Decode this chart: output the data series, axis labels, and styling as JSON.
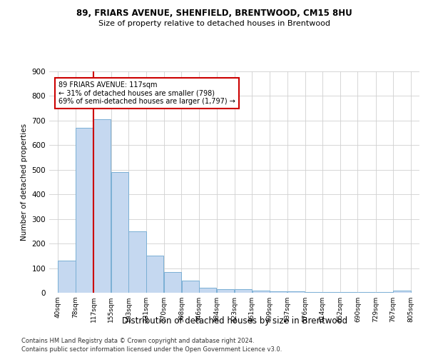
{
  "title1": "89, FRIARS AVENUE, SHENFIELD, BRENTWOOD, CM15 8HU",
  "title2": "Size of property relative to detached houses in Brentwood",
  "xlabel": "Distribution of detached houses by size in Brentwood",
  "ylabel": "Number of detached properties",
  "footnote1": "Contains HM Land Registry data © Crown copyright and database right 2024.",
  "footnote2": "Contains public sector information licensed under the Open Government Licence v3.0.",
  "annotation_line1": "89 FRIARS AVENUE: 117sqm",
  "annotation_line2": "← 31% of detached houses are smaller (798)",
  "annotation_line3": "69% of semi-detached houses are larger (1,797) →",
  "property_size_idx": 2,
  "bins": [
    40,
    78,
    117,
    155,
    193,
    231,
    270,
    308,
    346,
    384,
    423,
    461,
    499,
    537,
    576,
    614,
    652,
    690,
    729,
    767,
    805
  ],
  "values": [
    130,
    670,
    705,
    490,
    250,
    150,
    85,
    50,
    20,
    15,
    15,
    10,
    7,
    5,
    4,
    3,
    2,
    2,
    2,
    10
  ],
  "bar_color": "#c5d8f0",
  "bar_edge_color": "#7aafd4",
  "red_line_color": "#cc0000",
  "annotation_box_color": "#cc0000",
  "grid_color": "#d0d0d0",
  "bg_color": "#ffffff",
  "ylim": [
    0,
    900
  ],
  "yticks": [
    0,
    100,
    200,
    300,
    400,
    500,
    600,
    700,
    800,
    900
  ],
  "title1_fontsize": 8.5,
  "title2_fontsize": 8.0,
  "xlabel_fontsize": 8.5,
  "ylabel_fontsize": 7.5,
  "xtick_fontsize": 6.5,
  "ytick_fontsize": 7.5,
  "annotation_fontsize": 7.0,
  "footnote_fontsize": 6.0
}
